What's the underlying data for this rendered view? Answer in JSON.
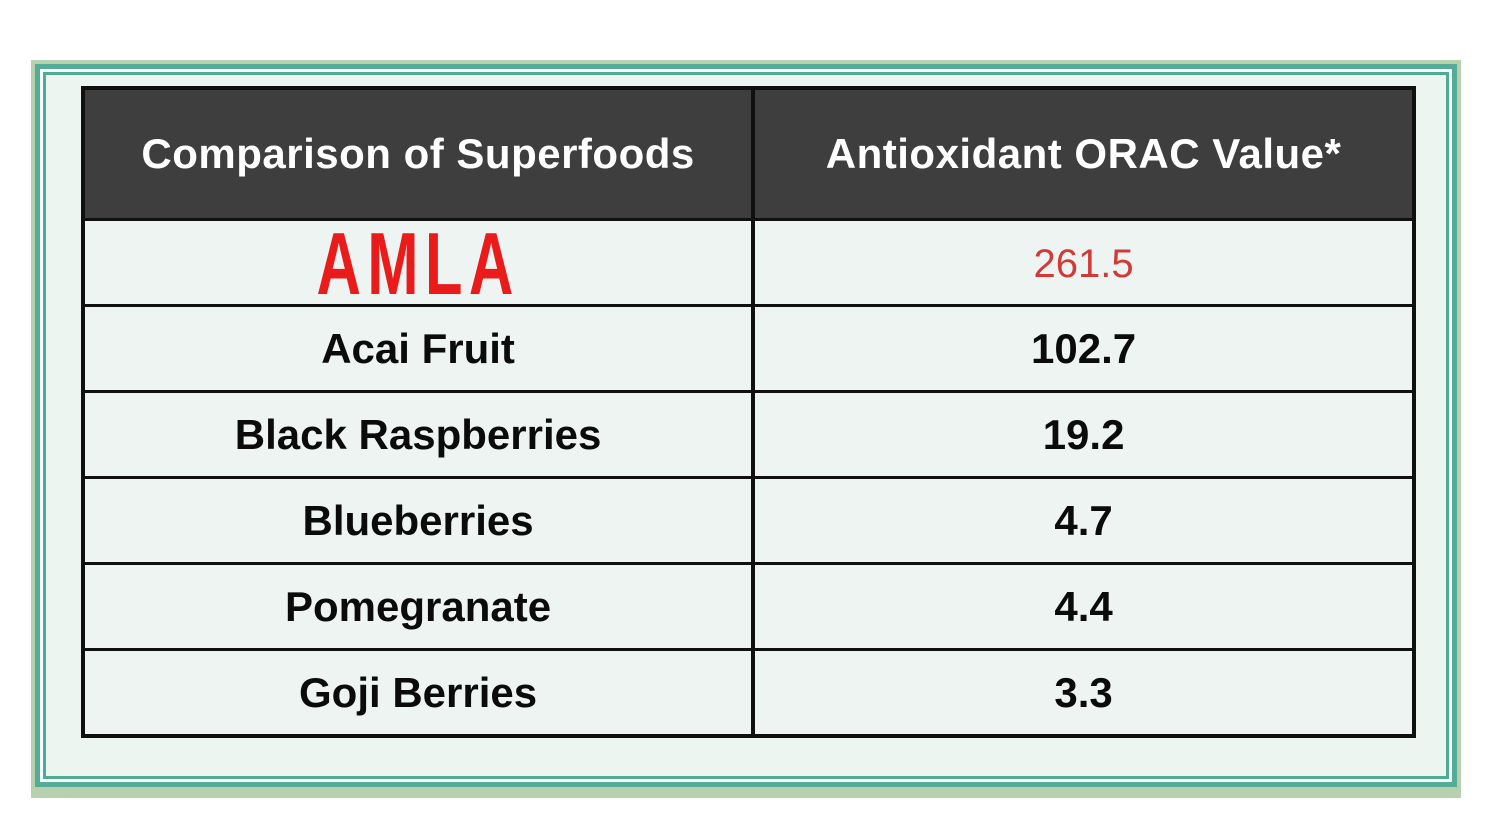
{
  "chart_data": {
    "type": "table",
    "title": "Comparison of Superfoods",
    "columns": [
      "Comparison of Superfoods",
      "Antioxidant ORAC Value*"
    ],
    "categories": [
      "AMLA",
      "Acai Fruit",
      "Black Raspberries",
      "Blueberries",
      "Pomegranate",
      "Goji Berries"
    ],
    "values": [
      "261.5",
      "102.7",
      "19.2",
      "4.7",
      "4.4",
      "3.3"
    ],
    "highlighted_row": "AMLA",
    "legend_position": "none",
    "grid": "table-borders"
  },
  "style": {
    "header_bg": "#3e3e3e",
    "header_text_color": "#ffffff",
    "row_bg": "#edf4f1",
    "row_text_color": "#0b0b0b",
    "highlight_name_color": "#ea1b1b",
    "highlight_value_color": "#d23a3a",
    "table_border_color": "#101010",
    "frame_teal": "#54ab97",
    "frame_sage": "#b7d0ae",
    "frame_mint_bg": "#edf5f1",
    "page_bg": "#ffffff"
  }
}
